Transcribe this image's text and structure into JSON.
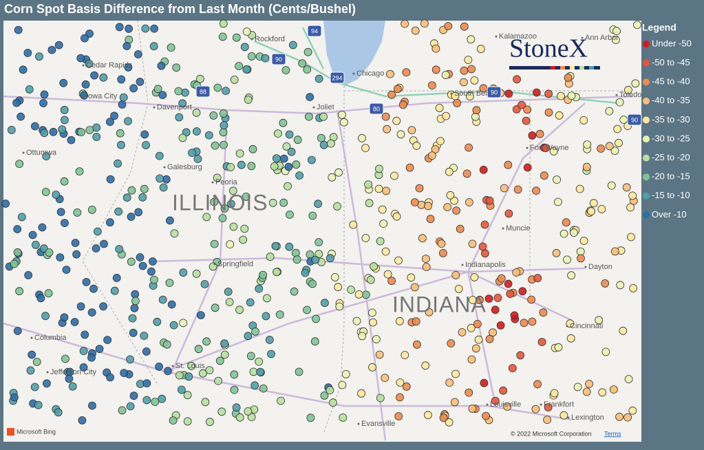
{
  "title": "Corn Spot Basis Difference from Last Month (Cents/Bushel)",
  "legend": {
    "title": "Legend",
    "items": [
      {
        "label": "Under -50",
        "color": "#d7191c"
      },
      {
        "label": "-50 to -45",
        "color": "#e8553a"
      },
      {
        "label": "-45 to -40",
        "color": "#f08a4b"
      },
      {
        "label": "-40 to -35",
        "color": "#f9be76"
      },
      {
        "label": "-35 to -30",
        "color": "#fde89a"
      },
      {
        "label": "-30 to -25",
        "color": "#e9f4b3"
      },
      {
        "label": "-25 to -20",
        "color": "#b7e0a0"
      },
      {
        "label": "-20 to -15",
        "color": "#80c495"
      },
      {
        "label": "-15 to -10",
        "color": "#4fa0a8"
      },
      {
        "label": "Over -10",
        "color": "#2b6ea8"
      }
    ]
  },
  "map": {
    "states": [
      "ILLINOIS",
      "INDIANA"
    ],
    "cities": [
      "Rockford",
      "Kalamazoo",
      "Ann Arbor",
      "Cedar Rapids",
      "Chicago",
      "Iowa City",
      "South Bend",
      "Toledo",
      "Davenport",
      "Joliet",
      "Ottumwa",
      "Fort Wayne",
      "Galesburg",
      "Peoria",
      "Muncie",
      "Indianapolis",
      "Springfield",
      "Dayton",
      "Columbia",
      "Cincinnati",
      "St. Louis",
      "Jefferson City",
      "Louisville",
      "Frankfort",
      "Lexington",
      "Evansville"
    ],
    "highways": [
      "94",
      "90",
      "294",
      "88",
      "80",
      "90",
      "90"
    ]
  },
  "brand": "StoneX",
  "attribution": "Microsoft Bing",
  "copyright": "© 2022 Microsoft Corporation",
  "terms": "Terms"
}
